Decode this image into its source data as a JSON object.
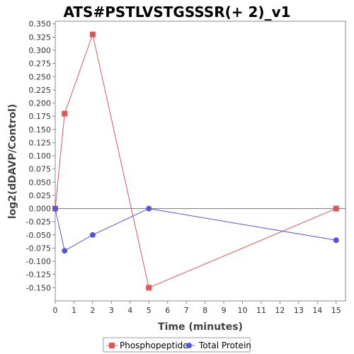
{
  "chart_data": {
    "type": "line",
    "title": "ATS#PSTLVSTGSSSR(+ 2)_v1",
    "xlabel": "Time (minutes)",
    "ylabel": "log2(dDAVP/Control)",
    "xlim": [
      0,
      15.5
    ],
    "ylim": [
      -0.175,
      0.355
    ],
    "xticks": [
      0,
      1,
      2,
      3,
      4,
      5,
      6,
      7,
      8,
      9,
      10,
      11,
      12,
      13,
      14,
      15
    ],
    "yticks": [
      -0.15,
      -0.125,
      -0.1,
      -0.075,
      -0.05,
      -0.025,
      0.0,
      0.025,
      0.05,
      0.075,
      0.1,
      0.125,
      0.15,
      0.175,
      0.2,
      0.225,
      0.25,
      0.275,
      0.3,
      0.325,
      0.35
    ],
    "ytick_labels": [
      "-0.150",
      "-0.125",
      "-0.100",
      "-0.075",
      "-0.050",
      "-0.025",
      "0.000",
      "0.025",
      "0.050",
      "0.075",
      "0.100",
      "0.125",
      "0.150",
      "0.175",
      "0.200",
      "0.225",
      "0.250",
      "0.275",
      "0.300",
      "0.325",
      "0.350"
    ],
    "grid": false,
    "zero_line": true,
    "legend_position": "bottom",
    "series": [
      {
        "name": "Phosphopeptide",
        "color": "#e05555",
        "marker": "square",
        "x": [
          0,
          0.5,
          2,
          5,
          15
        ],
        "y": [
          0.0,
          0.18,
          0.33,
          -0.15,
          0.0
        ]
      },
      {
        "name": "Total Protein",
        "color": "#5555e0",
        "marker": "circle",
        "x": [
          0,
          0.5,
          2,
          5,
          15
        ],
        "y": [
          0.0,
          -0.08,
          -0.05,
          0.0,
          -0.06
        ]
      }
    ]
  }
}
